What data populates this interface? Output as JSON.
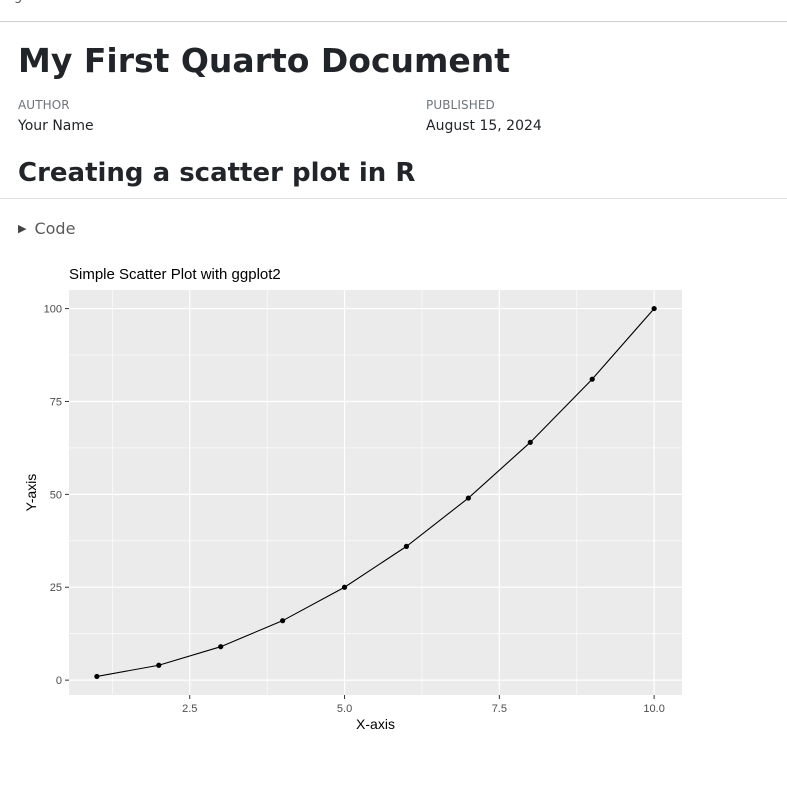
{
  "topbar": {
    "fragment": "g"
  },
  "document": {
    "title": "My First Quarto Document",
    "meta": {
      "author_label": "AUTHOR",
      "author": "Your Name",
      "published_label": "PUBLISHED",
      "published": "August 15, 2024"
    },
    "section_heading": "Creating a scatter plot in R",
    "code_toggle_label": "Code"
  },
  "chart_data": {
    "type": "scatter",
    "title": "Simple Scatter Plot with ggplot2",
    "xlabel": "X-axis",
    "ylabel": "Y-axis",
    "x": [
      1,
      2,
      3,
      4,
      5,
      6,
      7,
      8,
      9,
      10
    ],
    "y": [
      1,
      4,
      9,
      16,
      25,
      36,
      49,
      64,
      81,
      100
    ],
    "connect_points": true,
    "xlim": [
      0.55,
      10.45
    ],
    "ylim": [
      -4,
      105
    ],
    "xticks": [
      2.5,
      5.0,
      7.5,
      10.0
    ],
    "xtick_labels": [
      "2.5",
      "5.0",
      "7.5",
      "10.0"
    ],
    "yticks": [
      0,
      25,
      50,
      75,
      100
    ],
    "ytick_labels": [
      "0",
      "25",
      "50",
      "75",
      "100"
    ],
    "grid": true,
    "panel_color": "#EBEBEB",
    "point_color": "#000000",
    "line_color": "#000000"
  }
}
